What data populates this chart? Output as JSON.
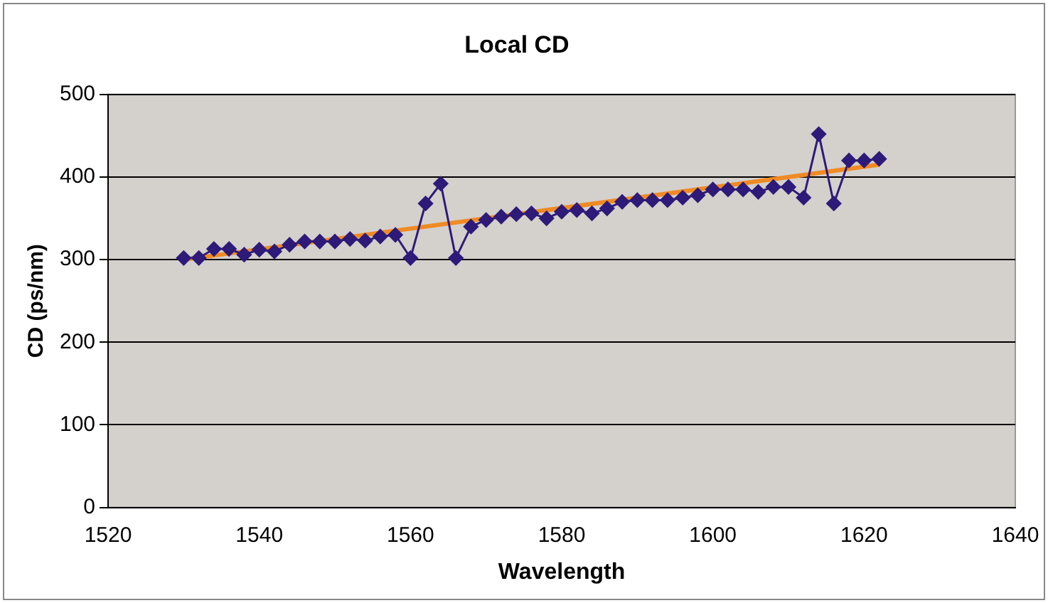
{
  "chart_data": {
    "type": "line",
    "title": "Local CD",
    "xlabel": "Wavelength",
    "ylabel": "CD (ps/nm)",
    "xlim": [
      1520,
      1640
    ],
    "xticks": [
      1520,
      1540,
      1560,
      1580,
      1600,
      1620,
      1640
    ],
    "ylim": [
      0,
      500
    ],
    "yticks": [
      0,
      100,
      200,
      300,
      400,
      500
    ],
    "grid": "y",
    "legend": false,
    "marker": "diamond",
    "line_style": "solid",
    "series": [
      {
        "color": "#2e1a78",
        "x": [
          1530,
          1532,
          1534,
          1536,
          1538,
          1540,
          1542,
          1544,
          1546,
          1548,
          1550,
          1552,
          1554,
          1556,
          1558,
          1560,
          1562,
          1564,
          1566,
          1568,
          1570,
          1572,
          1574,
          1576,
          1578,
          1580,
          1582,
          1584,
          1586,
          1588,
          1590,
          1592,
          1594,
          1596,
          1598,
          1600,
          1602,
          1604,
          1606,
          1608,
          1610,
          1612,
          1614,
          1616,
          1618,
          1620,
          1622
        ],
        "values": [
          302,
          302,
          313,
          313,
          306,
          312,
          310,
          318,
          322,
          322,
          322,
          325,
          323,
          328,
          330,
          302,
          368,
          392,
          302,
          340,
          348,
          352,
          355,
          356,
          350,
          358,
          360,
          356,
          362,
          370,
          372,
          372,
          372,
          375,
          378,
          385,
          385,
          385,
          382,
          388,
          388,
          375,
          452,
          368,
          420,
          420,
          422
        ]
      },
      {
        "color": "#f08a24",
        "marker": "none",
        "x": [
          1530,
          1622
        ],
        "values": [
          300,
          415
        ]
      }
    ]
  }
}
